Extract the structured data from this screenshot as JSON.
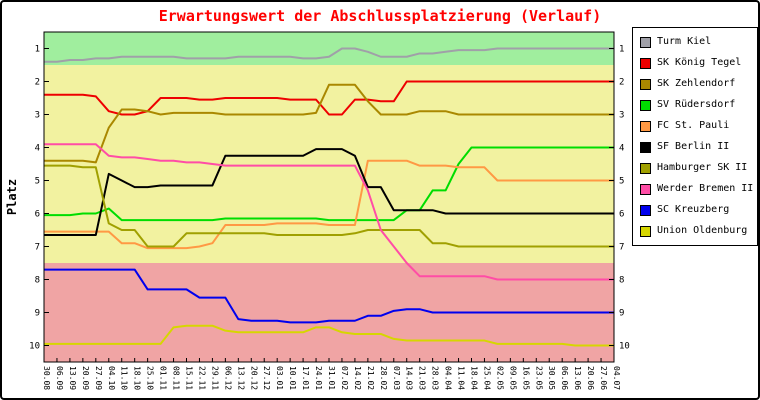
{
  "chart_data": {
    "type": "line",
    "title": "Erwartungswert der Abschlussplatzierung (Verlauf)",
    "ylabel": "Platz",
    "ylim": [
      0.5,
      10.5
    ],
    "y_axis_inverted": true,
    "grid": false,
    "legend_position": "right",
    "y_ticks": [
      1,
      2,
      3,
      4,
      5,
      6,
      7,
      8,
      9,
      10
    ],
    "x_tick_labels": [
      "30.08",
      "06.09",
      "13.09",
      "20.09",
      "27.09",
      "04.10",
      "11.10",
      "18.10",
      "25.10",
      "01.11",
      "08.11",
      "15.11",
      "22.11",
      "29.11",
      "06.12",
      "13.12",
      "20.12",
      "27.12",
      "03.01",
      "10.01",
      "17.01",
      "24.01",
      "31.01",
      "07.02",
      "14.02",
      "21.02",
      "28.02",
      "07.03",
      "14.03",
      "21.03",
      "28.03",
      "04.04",
      "11.04",
      "18.04",
      "25.04",
      "02.05",
      "09.05",
      "16.05",
      "23.05",
      "30.05",
      "06.06",
      "13.06",
      "20.06",
      "27.06",
      "04.07"
    ],
    "bands": [
      {
        "name": "promotion-zone",
        "from": 0.5,
        "to": 1.5,
        "color": "#a0ee9e"
      },
      {
        "name": "midfield-zone",
        "from": 1.5,
        "to": 7.5,
        "color": "#f2f2a0"
      },
      {
        "name": "relegation-zone",
        "from": 7.5,
        "to": 10.5,
        "color": "#f0a4a4"
      }
    ],
    "series": [
      {
        "name": "Turm Kiel",
        "color": "#a0a0a8",
        "values": [
          1.4,
          1.4,
          1.35,
          1.35,
          1.3,
          1.3,
          1.25,
          1.25,
          1.25,
          1.25,
          1.25,
          1.3,
          1.3,
          1.3,
          1.3,
          1.25,
          1.25,
          1.25,
          1.25,
          1.25,
          1.3,
          1.3,
          1.25,
          1.0,
          1.0,
          1.1,
          1.25,
          1.25,
          1.25,
          1.15,
          1.15,
          1.1,
          1.05,
          1.05,
          1.05,
          1.0,
          1.0,
          1.0,
          1.0,
          1.0,
          1.0,
          1.0,
          1.0,
          1.0,
          1.0
        ]
      },
      {
        "name": "SK König Tegel",
        "color": "#ee0000",
        "values": [
          2.4,
          2.4,
          2.4,
          2.4,
          2.45,
          2.9,
          3.0,
          3.0,
          2.9,
          2.5,
          2.5,
          2.5,
          2.55,
          2.55,
          2.5,
          2.5,
          2.5,
          2.5,
          2.5,
          2.55,
          2.55,
          2.55,
          3.0,
          3.0,
          2.55,
          2.55,
          2.6,
          2.6,
          2.0,
          2.0,
          2.0,
          2.0,
          2.0,
          2.0,
          2.0,
          2.0,
          2.0,
          2.0,
          2.0,
          2.0,
          2.0,
          2.0,
          2.0,
          2.0,
          2.0
        ]
      },
      {
        "name": "SK Zehlendorf",
        "color": "#aa8800",
        "values": [
          4.4,
          4.4,
          4.4,
          4.4,
          4.45,
          3.4,
          2.85,
          2.85,
          2.9,
          3.0,
          2.95,
          2.95,
          2.95,
          2.95,
          3.0,
          3.0,
          3.0,
          3.0,
          3.0,
          3.0,
          3.0,
          2.95,
          2.1,
          2.1,
          2.1,
          2.6,
          3.0,
          3.0,
          3.0,
          2.9,
          2.9,
          2.9,
          3.0,
          3.0,
          3.0,
          3.0,
          3.0,
          3.0,
          3.0,
          3.0,
          3.0,
          3.0,
          3.0,
          3.0,
          3.0
        ]
      },
      {
        "name": "SV Rüdersdorf",
        "color": "#00dd00",
        "values": [
          6.05,
          6.05,
          6.05,
          6.0,
          6.0,
          5.85,
          6.2,
          6.2,
          6.2,
          6.2,
          6.2,
          6.2,
          6.2,
          6.2,
          6.15,
          6.15,
          6.15,
          6.15,
          6.15,
          6.15,
          6.15,
          6.15,
          6.2,
          6.2,
          6.2,
          6.2,
          6.2,
          6.2,
          5.9,
          5.9,
          5.3,
          5.3,
          4.5,
          4.0,
          4.0,
          4.0,
          4.0,
          4.0,
          4.0,
          4.0,
          4.0,
          4.0,
          4.0,
          4.0,
          4.0
        ]
      },
      {
        "name": "FC St. Pauli",
        "color": "#ff9944",
        "values": [
          6.55,
          6.55,
          6.55,
          6.55,
          6.55,
          6.55,
          6.9,
          6.9,
          7.05,
          7.05,
          7.05,
          7.05,
          7.0,
          6.9,
          6.35,
          6.35,
          6.35,
          6.35,
          6.3,
          6.3,
          6.3,
          6.3,
          6.35,
          6.35,
          6.35,
          4.4,
          4.4,
          4.4,
          4.4,
          4.55,
          4.55,
          4.55,
          4.6,
          4.6,
          4.6,
          5.0,
          5.0,
          5.0,
          5.0,
          5.0,
          5.0,
          5.0,
          5.0,
          5.0,
          5.0
        ]
      },
      {
        "name": "SF Berlin II",
        "color": "#000000",
        "values": [
          6.65,
          6.65,
          6.65,
          6.65,
          6.65,
          4.8,
          5.0,
          5.2,
          5.2,
          5.15,
          5.15,
          5.15,
          5.15,
          5.15,
          4.25,
          4.25,
          4.25,
          4.25,
          4.25,
          4.25,
          4.25,
          4.05,
          4.05,
          4.05,
          4.25,
          5.2,
          5.2,
          5.9,
          5.9,
          5.9,
          5.9,
          6.0,
          6.0,
          6.0,
          6.0,
          6.0,
          6.0,
          6.0,
          6.0,
          6.0,
          6.0,
          6.0,
          6.0,
          6.0,
          6.0
        ]
      },
      {
        "name": "Hamburger SK II",
        "color": "#a0a000",
        "values": [
          4.55,
          4.55,
          4.55,
          4.6,
          4.6,
          6.3,
          6.5,
          6.5,
          7.0,
          7.0,
          7.0,
          6.6,
          6.6,
          6.6,
          6.6,
          6.6,
          6.6,
          6.6,
          6.65,
          6.65,
          6.65,
          6.65,
          6.65,
          6.65,
          6.6,
          6.5,
          6.5,
          6.5,
          6.5,
          6.5,
          6.9,
          6.9,
          7.0,
          7.0,
          7.0,
          7.0,
          7.0,
          7.0,
          7.0,
          7.0,
          7.0,
          7.0,
          7.0,
          7.0,
          7.0
        ]
      },
      {
        "name": "Werder Bremen II",
        "color": "#ff4da6",
        "values": [
          3.9,
          3.9,
          3.9,
          3.9,
          3.9,
          4.25,
          4.3,
          4.3,
          4.35,
          4.4,
          4.4,
          4.45,
          4.45,
          4.5,
          4.55,
          4.55,
          4.55,
          4.55,
          4.55,
          4.55,
          4.55,
          4.55,
          4.55,
          4.55,
          4.55,
          5.3,
          6.5,
          7.0,
          7.5,
          7.9,
          7.9,
          7.9,
          7.9,
          7.9,
          7.9,
          8.0,
          8.0,
          8.0,
          8.0,
          8.0,
          8.0,
          8.0,
          8.0,
          8.0,
          8.0
        ]
      },
      {
        "name": "SC Kreuzberg",
        "color": "#0000ee",
        "values": [
          7.7,
          7.7,
          7.7,
          7.7,
          7.7,
          7.7,
          7.7,
          7.7,
          8.3,
          8.3,
          8.3,
          8.3,
          8.55,
          8.55,
          8.55,
          9.2,
          9.25,
          9.25,
          9.25,
          9.3,
          9.3,
          9.3,
          9.25,
          9.25,
          9.25,
          9.1,
          9.1,
          8.95,
          8.9,
          8.9,
          9.0,
          9.0,
          9.0,
          9.0,
          9.0,
          9.0,
          9.0,
          9.0,
          9.0,
          9.0,
          9.0,
          9.0,
          9.0,
          9.0,
          9.0
        ]
      },
      {
        "name": "Union Oldenburg",
        "color": "#d6d600",
        "values": [
          9.95,
          9.95,
          9.95,
          9.95,
          9.95,
          9.95,
          9.95,
          9.95,
          9.95,
          9.95,
          9.45,
          9.4,
          9.4,
          9.4,
          9.55,
          9.6,
          9.6,
          9.6,
          9.6,
          9.6,
          9.6,
          9.45,
          9.45,
          9.6,
          9.65,
          9.65,
          9.65,
          9.8,
          9.85,
          9.85,
          9.85,
          9.85,
          9.85,
          9.85,
          9.85,
          9.95,
          9.95,
          9.95,
          9.95,
          9.95,
          9.95,
          10.0,
          10.0,
          10.0,
          10.0
        ]
      }
    ]
  }
}
